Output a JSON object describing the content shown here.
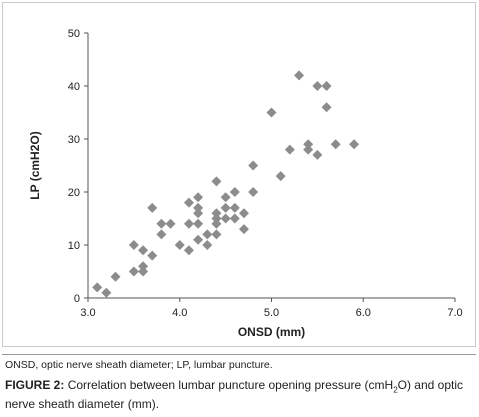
{
  "chart_data": {
    "type": "scatter",
    "xlabel": "ONSD (mm)",
    "ylabel": "LP (cmH2O)",
    "xlim": [
      3.0,
      7.0
    ],
    "ylim": [
      0,
      50
    ],
    "xticks": [
      "3.0",
      "4.0",
      "5.0",
      "6.0",
      "7.0"
    ],
    "yticks": [
      "0",
      "10",
      "20",
      "30",
      "40",
      "50"
    ],
    "marker": "diamond",
    "marker_color": "#8c8c8c",
    "grid": false,
    "points": [
      {
        "x": 3.1,
        "y": 2
      },
      {
        "x": 3.2,
        "y": 1
      },
      {
        "x": 3.3,
        "y": 4
      },
      {
        "x": 3.5,
        "y": 10
      },
      {
        "x": 3.5,
        "y": 5
      },
      {
        "x": 3.6,
        "y": 9
      },
      {
        "x": 3.6,
        "y": 6
      },
      {
        "x": 3.6,
        "y": 5
      },
      {
        "x": 3.7,
        "y": 17
      },
      {
        "x": 3.7,
        "y": 8
      },
      {
        "x": 3.8,
        "y": 14
      },
      {
        "x": 3.8,
        "y": 12
      },
      {
        "x": 3.9,
        "y": 14
      },
      {
        "x": 4.0,
        "y": 10
      },
      {
        "x": 4.1,
        "y": 18
      },
      {
        "x": 4.1,
        "y": 14
      },
      {
        "x": 4.1,
        "y": 9
      },
      {
        "x": 4.2,
        "y": 19
      },
      {
        "x": 4.2,
        "y": 17
      },
      {
        "x": 4.2,
        "y": 16
      },
      {
        "x": 4.2,
        "y": 14
      },
      {
        "x": 4.2,
        "y": 11
      },
      {
        "x": 4.3,
        "y": 12
      },
      {
        "x": 4.3,
        "y": 10
      },
      {
        "x": 4.4,
        "y": 22
      },
      {
        "x": 4.4,
        "y": 16
      },
      {
        "x": 4.4,
        "y": 15
      },
      {
        "x": 4.4,
        "y": 14
      },
      {
        "x": 4.4,
        "y": 12
      },
      {
        "x": 4.5,
        "y": 19
      },
      {
        "x": 4.5,
        "y": 17
      },
      {
        "x": 4.5,
        "y": 15
      },
      {
        "x": 4.6,
        "y": 20
      },
      {
        "x": 4.6,
        "y": 17
      },
      {
        "x": 4.6,
        "y": 15
      },
      {
        "x": 4.7,
        "y": 16
      },
      {
        "x": 4.7,
        "y": 13
      },
      {
        "x": 4.8,
        "y": 25
      },
      {
        "x": 4.8,
        "y": 20
      },
      {
        "x": 5.0,
        "y": 35
      },
      {
        "x": 5.1,
        "y": 23
      },
      {
        "x": 5.2,
        "y": 28
      },
      {
        "x": 5.3,
        "y": 42
      },
      {
        "x": 5.4,
        "y": 29
      },
      {
        "x": 5.4,
        "y": 28
      },
      {
        "x": 5.5,
        "y": 40
      },
      {
        "x": 5.5,
        "y": 27
      },
      {
        "x": 5.6,
        "y": 40
      },
      {
        "x": 5.6,
        "y": 36
      },
      {
        "x": 5.7,
        "y": 29
      },
      {
        "x": 5.9,
        "y": 29
      }
    ]
  },
  "notes": {
    "abbreviations": "ONSD, optic nerve sheath diameter; LP, lumbar puncture."
  },
  "caption": {
    "label": "FIGURE 2:",
    "text_before_sub": "Correlation between lumbar puncture opening pressure (cmH",
    "subscript": "2",
    "text_after_sub": "O) and optic nerve sheath diameter (mm)."
  }
}
